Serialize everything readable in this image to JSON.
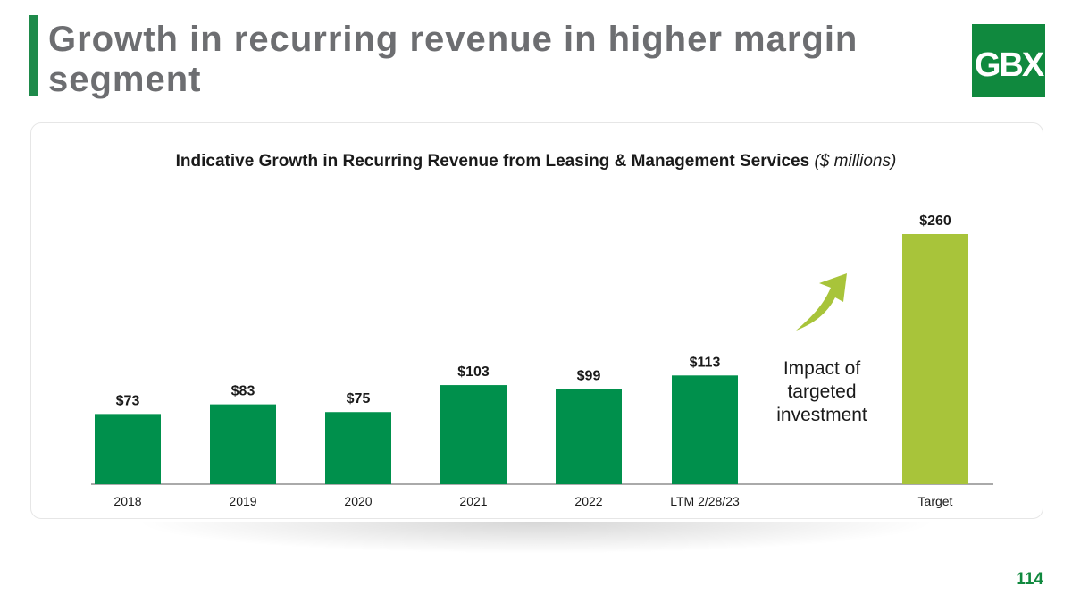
{
  "slide": {
    "title": "Growth in recurring revenue in higher margin segment",
    "logo_text": "GBX",
    "page_number": "114",
    "annotation": "Impact of targeted investment"
  },
  "colors": {
    "brand_green": "#10893e",
    "bar_green": "#00904c",
    "target_green": "#a8c43a",
    "title_gray": "#6d6e71"
  },
  "chart_data": {
    "type": "bar",
    "title": "Indicative Growth in Recurring Revenue from Leasing & Management Services",
    "title_unit": "($ millions)",
    "categories": [
      "2018",
      "2019",
      "2020",
      "2021",
      "2022",
      "LTM 2/28/23",
      "Target"
    ],
    "values": [
      73,
      83,
      75,
      103,
      99,
      113,
      260
    ],
    "value_labels": [
      "$73",
      "$83",
      "$75",
      "$103",
      "$99",
      "$113",
      "$260"
    ],
    "highlight": "Target",
    "xlabel": "",
    "ylabel": "",
    "ylim": [
      0,
      280
    ],
    "grid": false,
    "legend": "none"
  }
}
